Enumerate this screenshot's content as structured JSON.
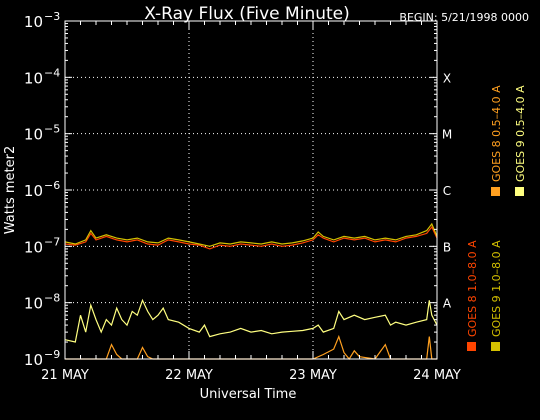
{
  "chart_data": {
    "type": "line",
    "title": "X-Ray Flux (Five Minute)",
    "begin_label": "BEGIN: 5/21/1998 0000",
    "xlabel": "Universal Time",
    "ylabel": "Watts meter2",
    "y_scale": "log",
    "ylim": [
      1e-09,
      0.001
    ],
    "xlim": [
      0,
      72
    ],
    "x_unit": "hours since 21 May 1998 00:00 UT",
    "grid": "dotted",
    "x_ticks": [
      {
        "x": 0,
        "label": "21 MAY"
      },
      {
        "x": 24,
        "label": "22 MAY"
      },
      {
        "x": 48,
        "label": "23 MAY"
      },
      {
        "x": 72,
        "label": "24 MAY"
      }
    ],
    "y_ticks": [
      {
        "exp": -3,
        "base": "10",
        "sup": "−3"
      },
      {
        "exp": -4,
        "base": "10",
        "sup": "−4"
      },
      {
        "exp": -5,
        "base": "10",
        "sup": "−5"
      },
      {
        "exp": -6,
        "base": "10",
        "sup": "−6"
      },
      {
        "exp": -7,
        "base": "10",
        "sup": "−7"
      },
      {
        "exp": -8,
        "base": "10",
        "sup": "−8"
      },
      {
        "exp": -9,
        "base": "10",
        "sup": "−9"
      }
    ],
    "flare_classes": [
      {
        "label": "X",
        "exp": -4
      },
      {
        "label": "M",
        "exp": -5
      },
      {
        "label": "C",
        "exp": -6
      },
      {
        "label": "B",
        "exp": -7
      },
      {
        "label": "A",
        "exp": -8
      }
    ],
    "legend": [
      {
        "label": "GOES 8 1.0–8.0 A",
        "color": "#ff4500"
      },
      {
        "label": "GOES 8 0.5–4.0 A",
        "color": "#ffa020"
      },
      {
        "label": "GOES 9 1.0–8.0 A",
        "color": "#d4c000"
      },
      {
        "label": "GOES 9 0.5–4.0 A",
        "color": "#ffff80"
      }
    ],
    "series": [
      {
        "name": "GOES 8 1.0–8.0 A",
        "color": "#ff4500",
        "points": [
          [
            0,
            1.1e-07
          ],
          [
            2,
            1.05e-07
          ],
          [
            4,
            1.2e-07
          ],
          [
            5,
            1.7e-07
          ],
          [
            6,
            1.3e-07
          ],
          [
            8,
            1.5e-07
          ],
          [
            10,
            1.3e-07
          ],
          [
            12,
            1.2e-07
          ],
          [
            14,
            1.3e-07
          ],
          [
            16,
            1.1e-07
          ],
          [
            18,
            1.05e-07
          ],
          [
            20,
            1.3e-07
          ],
          [
            22,
            1.2e-07
          ],
          [
            24,
            1.1e-07
          ],
          [
            26,
            1.05e-07
          ],
          [
            28,
            9e-08
          ],
          [
            30,
            1.05e-07
          ],
          [
            32,
            1e-07
          ],
          [
            34,
            1.1e-07
          ],
          [
            36,
            1.05e-07
          ],
          [
            38,
            1e-07
          ],
          [
            40,
            1.1e-07
          ],
          [
            42,
            1e-07
          ],
          [
            44,
            1.05e-07
          ],
          [
            46,
            1.15e-07
          ],
          [
            48,
            1.3e-07
          ],
          [
            49,
            1.6e-07
          ],
          [
            50,
            1.4e-07
          ],
          [
            52,
            1.2e-07
          ],
          [
            54,
            1.4e-07
          ],
          [
            56,
            1.3e-07
          ],
          [
            58,
            1.4e-07
          ],
          [
            60,
            1.2e-07
          ],
          [
            62,
            1.3e-07
          ],
          [
            64,
            1.2e-07
          ],
          [
            66,
            1.4e-07
          ],
          [
            68,
            1.5e-07
          ],
          [
            70,
            1.7e-07
          ],
          [
            71,
            2.2e-07
          ],
          [
            72,
            1.4e-07
          ]
        ]
      },
      {
        "name": "GOES 8 0.5–4.0 A",
        "color": "#ffa020",
        "points": [
          [
            0,
            1e-09
          ],
          [
            8,
            1e-09
          ],
          [
            9,
            1.8e-09
          ],
          [
            10,
            1.2e-09
          ],
          [
            11,
            1e-09
          ],
          [
            14,
            1e-09
          ],
          [
            15,
            1.6e-09
          ],
          [
            16,
            1.1e-09
          ],
          [
            17,
            1e-09
          ],
          [
            44,
            1e-09
          ],
          [
            48,
            1e-09
          ],
          [
            50,
            1.2e-09
          ],
          [
            52,
            1.5e-09
          ],
          [
            53,
            2.5e-09
          ],
          [
            54,
            1.3e-09
          ],
          [
            55,
            1e-09
          ],
          [
            56,
            1.4e-09
          ],
          [
            57,
            1.1e-09
          ],
          [
            60,
            1e-09
          ],
          [
            62,
            1.8e-09
          ],
          [
            63,
            1e-09
          ],
          [
            70,
            1e-09
          ],
          [
            70.5,
            2.5e-09
          ],
          [
            71,
            1e-09
          ],
          [
            72,
            1e-09
          ]
        ]
      },
      {
        "name": "GOES 9 1.0–8.0 A",
        "color": "#d4c000",
        "points": [
          [
            0,
            1.2e-07
          ],
          [
            2,
            1.1e-07
          ],
          [
            4,
            1.3e-07
          ],
          [
            5,
            1.9e-07
          ],
          [
            6,
            1.4e-07
          ],
          [
            8,
            1.6e-07
          ],
          [
            10,
            1.4e-07
          ],
          [
            12,
            1.3e-07
          ],
          [
            14,
            1.4e-07
          ],
          [
            16,
            1.2e-07
          ],
          [
            18,
            1.15e-07
          ],
          [
            20,
            1.4e-07
          ],
          [
            22,
            1.3e-07
          ],
          [
            24,
            1.2e-07
          ],
          [
            26,
            1.1e-07
          ],
          [
            28,
            1e-07
          ],
          [
            30,
            1.15e-07
          ],
          [
            32,
            1.1e-07
          ],
          [
            34,
            1.2e-07
          ],
          [
            36,
            1.15e-07
          ],
          [
            38,
            1.1e-07
          ],
          [
            40,
            1.2e-07
          ],
          [
            42,
            1.1e-07
          ],
          [
            44,
            1.15e-07
          ],
          [
            46,
            1.25e-07
          ],
          [
            48,
            1.4e-07
          ],
          [
            49,
            1.8e-07
          ],
          [
            50,
            1.5e-07
          ],
          [
            52,
            1.3e-07
          ],
          [
            54,
            1.5e-07
          ],
          [
            56,
            1.4e-07
          ],
          [
            58,
            1.5e-07
          ],
          [
            60,
            1.3e-07
          ],
          [
            62,
            1.4e-07
          ],
          [
            64,
            1.3e-07
          ],
          [
            66,
            1.5e-07
          ],
          [
            68,
            1.6e-07
          ],
          [
            70,
            1.9e-07
          ],
          [
            71,
            2.5e-07
          ],
          [
            72,
            1.5e-07
          ]
        ]
      },
      {
        "name": "GOES 9 0.5–4.0 A",
        "color": "#ffff80",
        "points": [
          [
            0,
            2.2e-09
          ],
          [
            2,
            2e-09
          ],
          [
            3,
            6e-09
          ],
          [
            4,
            3e-09
          ],
          [
            5,
            9e-09
          ],
          [
            6,
            5e-09
          ],
          [
            7,
            3e-09
          ],
          [
            8,
            5e-09
          ],
          [
            9,
            4e-09
          ],
          [
            10,
            8e-09
          ],
          [
            11,
            5e-09
          ],
          [
            12,
            4e-09
          ],
          [
            13,
            7e-09
          ],
          [
            14,
            6e-09
          ],
          [
            15,
            1.1e-08
          ],
          [
            16,
            7e-09
          ],
          [
            17,
            5e-09
          ],
          [
            18,
            6e-09
          ],
          [
            19,
            8e-09
          ],
          [
            20,
            5e-09
          ],
          [
            22,
            4.5e-09
          ],
          [
            24,
            3.5e-09
          ],
          [
            26,
            3e-09
          ],
          [
            27,
            4e-09
          ],
          [
            28,
            2.5e-09
          ],
          [
            30,
            2.8e-09
          ],
          [
            32,
            3e-09
          ],
          [
            34,
            3.5e-09
          ],
          [
            36,
            3e-09
          ],
          [
            38,
            3.2e-09
          ],
          [
            40,
            2.8e-09
          ],
          [
            42,
            3e-09
          ],
          [
            44,
            3.1e-09
          ],
          [
            46,
            3.2e-09
          ],
          [
            48,
            3.5e-09
          ],
          [
            49,
            4e-09
          ],
          [
            50,
            3e-09
          ],
          [
            52,
            3.5e-09
          ],
          [
            53,
            7e-09
          ],
          [
            54,
            5e-09
          ],
          [
            56,
            6e-09
          ],
          [
            58,
            5e-09
          ],
          [
            60,
            5.5e-09
          ],
          [
            62,
            6e-09
          ],
          [
            63,
            4e-09
          ],
          [
            64,
            4.5e-09
          ],
          [
            66,
            4e-09
          ],
          [
            68,
            4.5e-09
          ],
          [
            70,
            5e-09
          ],
          [
            70.5,
            1.1e-08
          ],
          [
            71,
            6e-09
          ],
          [
            72,
            4e-09
          ]
        ]
      }
    ]
  }
}
